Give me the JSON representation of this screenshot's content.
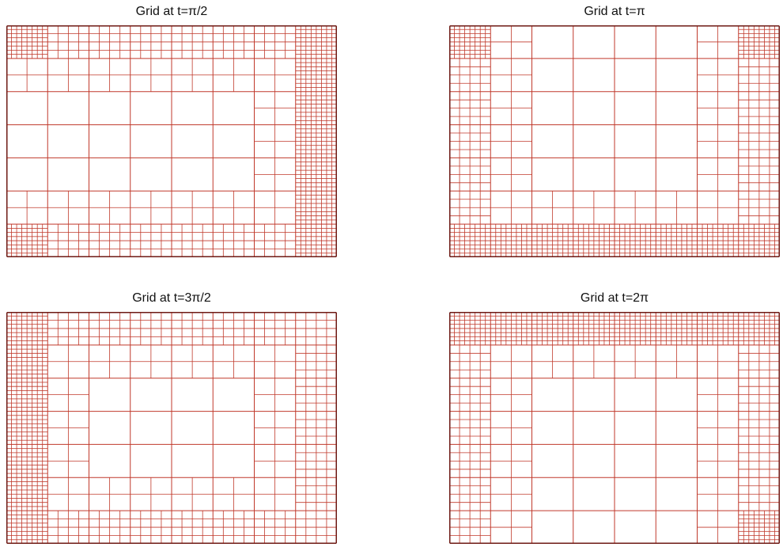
{
  "colors": {
    "line": "#c0392b",
    "border": "#6e1a14",
    "background": "#ffffff"
  },
  "panels": [
    {
      "title": "Grid at t=π/2",
      "refine": [
        "top",
        "bottom",
        "right-strip",
        "left-edge"
      ]
    },
    {
      "title": "Grid at t=π",
      "refine": [
        "left",
        "right",
        "bottom-strip",
        "top-corners"
      ]
    },
    {
      "title": "Grid at t=3π/2",
      "refine": [
        "top",
        "bottom",
        "left-strip",
        "right"
      ]
    },
    {
      "title": "Grid at t=2π",
      "refine": [
        "left",
        "top-strip",
        "right",
        "bottom-corner"
      ]
    }
  ]
}
